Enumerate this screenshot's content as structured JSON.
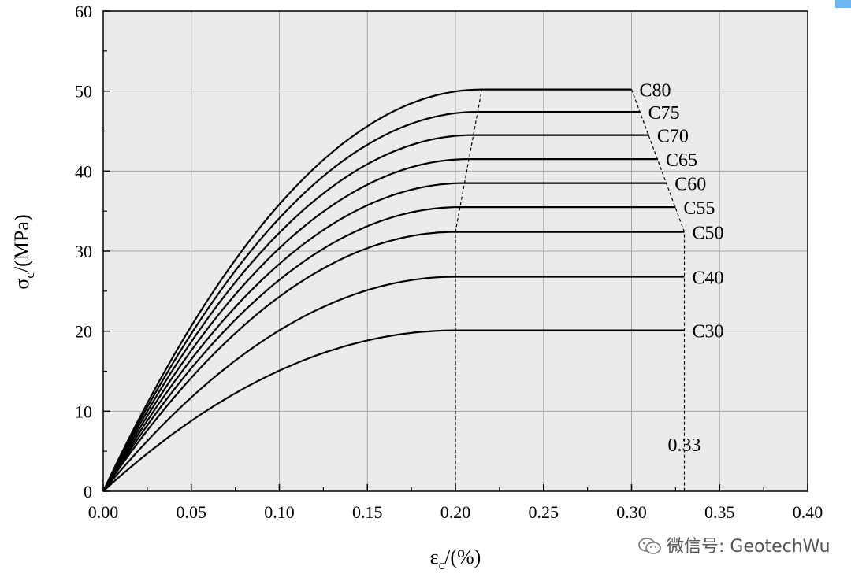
{
  "chart_data": {
    "type": "line",
    "title": "",
    "xlabel_main": "ε",
    "xlabel_sub": "c",
    "xlabel_rest": "/(%)",
    "ylabel_main": "σ",
    "ylabel_sub": "c",
    "ylabel_rest": "/(MPa)",
    "xlim": [
      0.0,
      0.4
    ],
    "ylim": [
      0,
      60
    ],
    "grid": true,
    "xticks": [
      "0.00",
      "0.05",
      "0.10",
      "0.15",
      "0.20",
      "0.25",
      "0.30",
      "0.35",
      "0.40"
    ],
    "xtick_values": [
      0.0,
      0.05,
      0.1,
      0.15,
      0.2,
      0.25,
      0.3,
      0.35,
      0.4
    ],
    "yticks": [
      "0",
      "10",
      "20",
      "30",
      "40",
      "50",
      "60"
    ],
    "ytick_values": [
      0,
      10,
      20,
      30,
      40,
      50,
      60
    ],
    "series": [
      {
        "name": "C30",
        "peak_stress": 20.1,
        "peak_strain": 0.2,
        "ultimate_strain": 0.33
      },
      {
        "name": "C40",
        "peak_stress": 26.8,
        "peak_strain": 0.2,
        "ultimate_strain": 0.33
      },
      {
        "name": "C50",
        "peak_stress": 32.4,
        "peak_strain": 0.2,
        "ultimate_strain": 0.33
      },
      {
        "name": "C55",
        "peak_stress": 35.5,
        "peak_strain": 0.2025,
        "ultimate_strain": 0.325
      },
      {
        "name": "C60",
        "peak_stress": 38.5,
        "peak_strain": 0.205,
        "ultimate_strain": 0.32
      },
      {
        "name": "C65",
        "peak_stress": 41.5,
        "peak_strain": 0.2075,
        "ultimate_strain": 0.315
      },
      {
        "name": "C70",
        "peak_stress": 44.5,
        "peak_strain": 0.21,
        "ultimate_strain": 0.31
      },
      {
        "name": "C75",
        "peak_stress": 47.4,
        "peak_strain": 0.2125,
        "ultimate_strain": 0.305
      },
      {
        "name": "C80",
        "peak_stress": 50.2,
        "peak_strain": 0.215,
        "ultimate_strain": 0.3
      }
    ],
    "dashed_lines": [
      {
        "points": [
          [
            0.2,
            0
          ],
          [
            0.2,
            32.4
          ],
          [
            0.215,
            50.2
          ]
        ]
      },
      {
        "points": [
          [
            0.3,
            50.2
          ],
          [
            0.33,
            32.4
          ],
          [
            0.33,
            0
          ]
        ]
      }
    ],
    "annotations": [
      {
        "text": "0.33",
        "x": 0.33,
        "y": 5.0
      }
    ]
  },
  "watermark": {
    "text": "微信号: GeotechWu"
  },
  "colors": {
    "plot_bg": "#ebebeb",
    "grid": "#a6a6a6",
    "line": "#000000",
    "accent": "#6fb7f0"
  }
}
